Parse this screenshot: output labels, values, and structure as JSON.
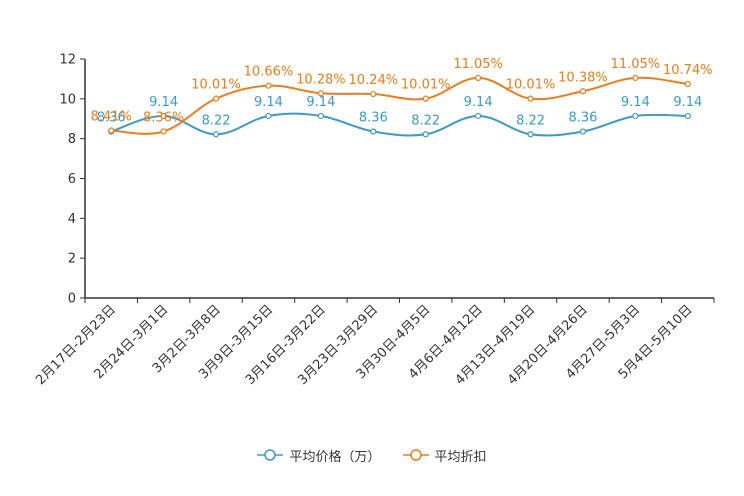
{
  "chart_data": {
    "type": "line",
    "categories": [
      "2月17日-2月23日",
      "2月24日-3月1日",
      "3月2日-3月8日",
      "3月9日-3月15日",
      "3月16日-3月22日",
      "3月23日-3月29日",
      "3月30日-4月5日",
      "4月6日-4月12日",
      "4月13日-4月19日",
      "4月20日-4月26日",
      "4月27日-5月3日",
      "5月4日-5月10日"
    ],
    "series": [
      {
        "name": "平均价格（万）",
        "color": "#3b9ac6",
        "values": [
          8.36,
          9.14,
          8.22,
          9.14,
          9.14,
          8.36,
          8.22,
          9.14,
          8.22,
          8.36,
          9.14,
          9.14
        ],
        "labels": [
          "8.36",
          "9.14",
          "8.22",
          "9.14",
          "9.14",
          "8.36",
          "8.22",
          "9.14",
          "8.22",
          "8.36",
          "9.14",
          "9.14"
        ]
      },
      {
        "name": "平均折扣",
        "color": "#f07b1a",
        "values": [
          8.41,
          8.36,
          10.01,
          10.66,
          10.28,
          10.24,
          10.01,
          11.05,
          10.01,
          10.38,
          11.05,
          10.74
        ],
        "labels": [
          "8.41%",
          "8.36%",
          "10.01%",
          "10.66%",
          "10.28%",
          "10.24%",
          "10.01%",
          "11.05%",
          "10.01%",
          "10.38%",
          "11.05%",
          "10.74%"
        ]
      }
    ],
    "ylim": [
      0,
      12
    ],
    "yticks": [
      0,
      2,
      4,
      6,
      8,
      10,
      12
    ],
    "title": "",
    "xlabel": "",
    "ylabel": "",
    "legend_position": "bottom-center"
  }
}
